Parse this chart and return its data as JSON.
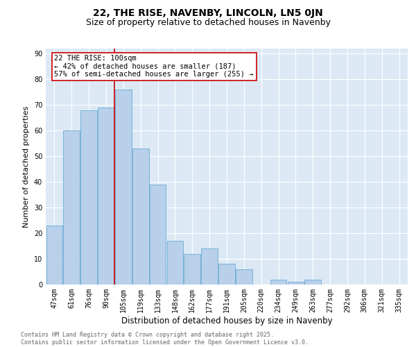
{
  "title": "22, THE RISE, NAVENBY, LINCOLN, LN5 0JN",
  "subtitle": "Size of property relative to detached houses in Navenby",
  "xlabel": "Distribution of detached houses by size in Navenby",
  "ylabel": "Number of detached properties",
  "categories": [
    "47sqm",
    "61sqm",
    "76sqm",
    "90sqm",
    "105sqm",
    "119sqm",
    "133sqm",
    "148sqm",
    "162sqm",
    "177sqm",
    "191sqm",
    "205sqm",
    "220sqm",
    "234sqm",
    "249sqm",
    "263sqm",
    "277sqm",
    "292sqm",
    "306sqm",
    "321sqm",
    "335sqm"
  ],
  "values": [
    23,
    60,
    68,
    69,
    76,
    53,
    39,
    17,
    12,
    14,
    8,
    6,
    0,
    2,
    1,
    2,
    0,
    0,
    0,
    0,
    0
  ],
  "bar_color": "#b8d0ea",
  "bar_edge_color": "#6aaad4",
  "reference_line_x": 3.5,
  "reference_line_color": "#cc0000",
  "annotation_box_text": "22 THE RISE: 100sqm\n← 42% of detached houses are smaller (187)\n57% of semi-detached houses are larger (255) →",
  "annotation_box_color": "#cc0000",
  "annotation_box_facecolor": "white",
  "ylim": [
    0,
    92
  ],
  "yticks": [
    0,
    10,
    20,
    30,
    40,
    50,
    60,
    70,
    80,
    90
  ],
  "background_color": "#dce9f5",
  "grid_color": "white",
  "footer_text": "Contains HM Land Registry data © Crown copyright and database right 2025.\nContains public sector information licensed under the Open Government Licence v3.0.",
  "title_fontsize": 10,
  "subtitle_fontsize": 9,
  "xlabel_fontsize": 8.5,
  "ylabel_fontsize": 8,
  "tick_fontsize": 7,
  "annotation_fontsize": 7.5,
  "footer_fontsize": 6
}
